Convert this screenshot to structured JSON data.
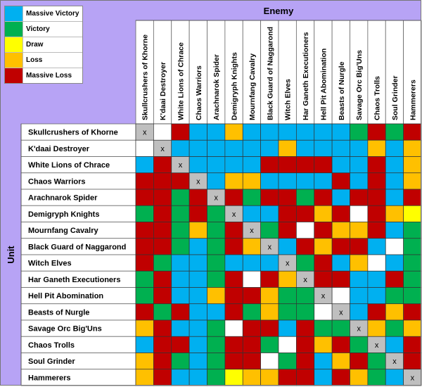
{
  "colors": {
    "Massive Victory": "#00b0f0",
    "Victory": "#00b050",
    "Draw": "#ffff00",
    "Loss": "#ffc000",
    "Massive Loss": "#c00000",
    "Self": "#bfbfbf",
    "Blank": "#ffffff",
    "Header": "#b7a3f5"
  },
  "chart_data": {
    "type": "heatmap",
    "title": "Enemy",
    "ylabel": "Unit",
    "legend": [
      "Massive Victory",
      "Victory",
      "Draw",
      "Loss",
      "Massive Loss"
    ],
    "legend_position": "top-left",
    "self_marker": "x",
    "codes": {
      "MV": "Massive Victory",
      "V": "Victory",
      "D": "Draw",
      "L": "Loss",
      "ML": "Massive Loss",
      "X": "Self",
      "W": "Blank"
    },
    "units": [
      "Skullcrushers of Khorne",
      "K'daai Destroyer",
      "White Lions of Chrace",
      "Chaos Warriors",
      "Arachnarok Spider",
      "Demigryph Knights",
      "Mournfang Cavalry",
      "Black Guard of Naggarond",
      "Witch Elves",
      "Har Ganeth Executioners",
      "Hell Pit Abomination",
      "Beasts of Nurgle",
      "Savage Orc Big'Uns",
      "Chaos Trolls",
      "Soul Grinder",
      "Hammerers"
    ],
    "enemies": [
      "Skullcrushers of Khorne",
      "K'daai Destroyer",
      "White Lions of Chrace",
      "Chaos Warriors",
      "Arachnarok Spider",
      "Demigryph Knights",
      "Mournfang Cavalry",
      "Black Guard of Naggarond",
      "Witch Elves",
      "Har Ganeth Executioners",
      "Hell Pit Abomination",
      "Beasts of Nurgle",
      "Savage Orc Big'Uns",
      "Chaos Trolls",
      "Soul Grinder",
      "Hammerers"
    ],
    "results": [
      [
        "X",
        "W",
        "ML",
        "MV",
        "MV",
        "L",
        "MV",
        "MV",
        "MV",
        "MV",
        "MV",
        "MV",
        "V",
        "ML",
        "V",
        "ML"
      ],
      [
        "W",
        "X",
        "MV",
        "MV",
        "MV",
        "MV",
        "MV",
        "MV",
        "L",
        "MV",
        "MV",
        "MV",
        "MV",
        "L",
        "MV",
        "L"
      ],
      [
        "MV",
        "ML",
        "X",
        "MV",
        "MV",
        "MV",
        "MV",
        "ML",
        "ML",
        "ML",
        "ML",
        "MV",
        "MV",
        "ML",
        "MV",
        "L"
      ],
      [
        "ML",
        "ML",
        "ML",
        "X",
        "MV",
        "L",
        "L",
        "MV",
        "MV",
        "MV",
        "MV",
        "ML",
        "MV",
        "ML",
        "MV",
        "L"
      ],
      [
        "ML",
        "ML",
        "V",
        "ML",
        "X",
        "ML",
        "V",
        "ML",
        "ML",
        "V",
        "ML",
        "MV",
        "ML",
        "ML",
        "MV",
        "ML"
      ],
      [
        "V",
        "ML",
        "V",
        "ML",
        "V",
        "X",
        "MV",
        "MV",
        "ML",
        "ML",
        "L",
        "ML",
        "W",
        "ML",
        "L",
        "D"
      ],
      [
        "ML",
        "ML",
        "V",
        "L",
        "V",
        "ML",
        "X",
        "V",
        "ML",
        "W",
        "ML",
        "L",
        "L",
        "ML",
        "MV",
        "V"
      ],
      [
        "ML",
        "ML",
        "V",
        "MV",
        "V",
        "ML",
        "L",
        "X",
        "MV",
        "ML",
        "L",
        "ML",
        "ML",
        "MV",
        "W",
        "V"
      ],
      [
        "ML",
        "V",
        "MV",
        "MV",
        "V",
        "MV",
        "MV",
        "MV",
        "X",
        "V",
        "ML",
        "MV",
        "L",
        "W",
        "MV",
        "V"
      ],
      [
        "V",
        "ML",
        "MV",
        "MV",
        "V",
        "ML",
        "W",
        "ML",
        "L",
        "X",
        "ML",
        "ML",
        "MV",
        "MV",
        "ML",
        "V"
      ],
      [
        "V",
        "ML",
        "MV",
        "MV",
        "L",
        "ML",
        "ML",
        "L",
        "V",
        "V",
        "X",
        "W",
        "MV",
        "MV",
        "V",
        "V"
      ],
      [
        "ML",
        "V",
        "ML",
        "MV",
        "MV",
        "ML",
        "V",
        "L",
        "V",
        "V",
        "W",
        "X",
        "MV",
        "ML",
        "L",
        "ML"
      ],
      [
        "L",
        "ML",
        "MV",
        "MV",
        "V",
        "W",
        "ML",
        "ML",
        "MV",
        "ML",
        "V",
        "V",
        "X",
        "L",
        "V",
        "L"
      ],
      [
        "MV",
        "ML",
        "ML",
        "MV",
        "V",
        "ML",
        "ML",
        "V",
        "W",
        "ML",
        "L",
        "ML",
        "V",
        "X",
        "MV",
        "ML"
      ],
      [
        "L",
        "ML",
        "V",
        "MV",
        "V",
        "ML",
        "ML",
        "W",
        "V",
        "ML",
        "MV",
        "L",
        "ML",
        "V",
        "X",
        "ML"
      ],
      [
        "L",
        "ML",
        "MV",
        "MV",
        "V",
        "D",
        "L",
        "L",
        "ML",
        "ML",
        "MV",
        "ML",
        "L",
        "V",
        "MV",
        "X"
      ]
    ]
  }
}
